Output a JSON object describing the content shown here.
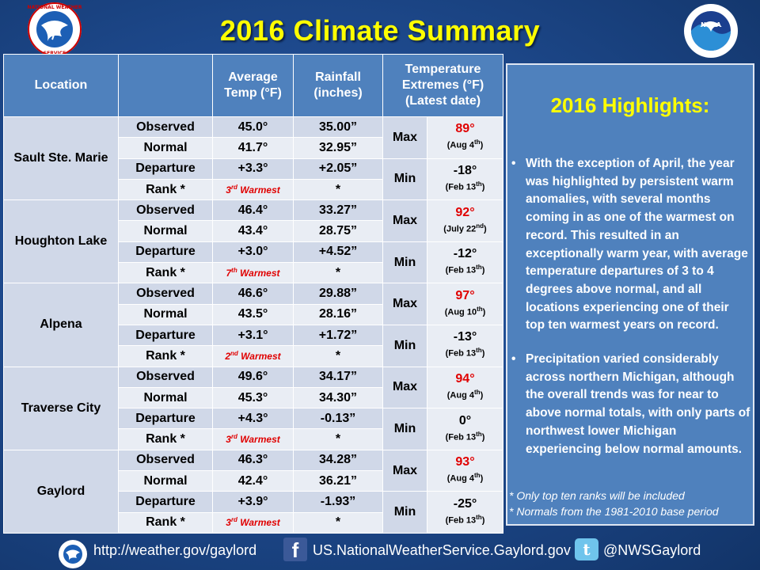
{
  "title": "2016 Climate Summary",
  "headers": {
    "location": "Location",
    "avg_temp": "Average Temp (°F)",
    "rainfall": "Rainfall (inches)",
    "temp_extremes": "Temperature Extremes (°F) (Latest date)"
  },
  "row_labels": [
    "Observed",
    "Normal",
    "Departure",
    "Rank *"
  ],
  "ext_labels": [
    "Max",
    "Min"
  ],
  "locations": [
    {
      "name": "Sault Ste. Marie",
      "temps": [
        "45.0°",
        "41.7°",
        "+3.3°"
      ],
      "rank_pre": "3",
      "rank_sup": "rd",
      "rank_post": " Warmest",
      "rain": [
        "35.00”",
        "32.95”",
        "+2.05”",
        "*"
      ],
      "max_val": "89°",
      "max_date_pre": "(Aug 4",
      "max_date_sup": "th",
      "max_date_post": ")",
      "min_val": "-18°",
      "min_date_pre": "(Feb 13",
      "min_date_sup": "th",
      "min_date_post": ")"
    },
    {
      "name": "Houghton Lake",
      "temps": [
        "46.4°",
        "43.4°",
        "+3.0°"
      ],
      "rank_pre": "7",
      "rank_sup": "th",
      "rank_post": " Warmest",
      "rain": [
        "33.27”",
        "28.75”",
        "+4.52”",
        "*"
      ],
      "max_val": "92°",
      "max_date_pre": "(July 22",
      "max_date_sup": "nd",
      "max_date_post": ")",
      "min_val": "-12°",
      "min_date_pre": "(Feb 13",
      "min_date_sup": "th",
      "min_date_post": ")"
    },
    {
      "name": "Alpena",
      "temps": [
        "46.6°",
        "43.5°",
        "+3.1°"
      ],
      "rank_pre": "2",
      "rank_sup": "nd",
      "rank_post": " Warmest",
      "rain": [
        "29.88”",
        "28.16”",
        "+1.72”",
        "*"
      ],
      "max_val": "97°",
      "max_date_pre": "(Aug 10",
      "max_date_sup": "th",
      "max_date_post": ")",
      "min_val": "-13°",
      "min_date_pre": "(Feb 13",
      "min_date_sup": "th",
      "min_date_post": ")"
    },
    {
      "name": "Traverse City",
      "temps": [
        "49.6°",
        "45.3°",
        "+4.3°"
      ],
      "rank_pre": "3",
      "rank_sup": "rd",
      "rank_post": " Warmest",
      "rain": [
        "34.17”",
        "34.30”",
        "-0.13”",
        "*"
      ],
      "max_val": "94°",
      "max_date_pre": "(Aug 4",
      "max_date_sup": "th",
      "max_date_post": ")",
      "min_val": "0°",
      "min_date_pre": "(Feb 13",
      "min_date_sup": "th",
      "min_date_post": ")"
    },
    {
      "name": "Gaylord",
      "temps": [
        "46.3°",
        "42.4°",
        "+3.9°"
      ],
      "rank_pre": "3",
      "rank_sup": "rd",
      "rank_post": " Warmest",
      "rain": [
        "34.28”",
        "36.21”",
        "-1.93”",
        "*"
      ],
      "max_val": "93°",
      "max_date_pre": "(Aug 4",
      "max_date_sup": "th",
      "max_date_post": ")",
      "min_val": "-25°",
      "min_date_pre": "(Feb 13",
      "min_date_sup": "th",
      "min_date_post": ")"
    }
  ],
  "highlights": {
    "title": "2016 Highlights:",
    "bullets": [
      "With the exception of April, the year was highlighted by persistent warm anomalies, with several months coming in as one of the warmest on record.  This resulted in an exceptionally warm year, with average temperature departures of 3 to 4 degrees above normal, and all locations experiencing one of their top ten warmest years on record.",
      "Precipitation varied considerably across northern Michigan, although the overall trends was for near to above normal totals, with only parts of northwest lower Michigan experiencing below normal amounts."
    ],
    "notes": [
      "*  Only top ten ranks will be included",
      "*  Normals from the 1981-2010 base period"
    ]
  },
  "footer": {
    "website": "http://weather.gov/gaylord",
    "facebook": "US.NationalWeatherService.Gaylord.gov",
    "twitter": "@NWSGaylord"
  },
  "logos": {
    "nws_text": "NATIONAL WEATHER SERVICE",
    "noaa_text": "NOAA"
  },
  "colors": {
    "title": "#ffff00",
    "header_bg": "#4f81bd",
    "cell_dark": "#d0d8e8",
    "cell_light": "#e9edf4",
    "rank_red": "#e00000"
  }
}
